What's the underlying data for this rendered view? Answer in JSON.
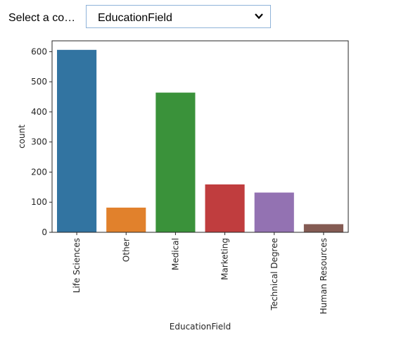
{
  "control": {
    "label": "Select a co…",
    "selected": "EducationField",
    "chevron_icon": "chevron-down-icon"
  },
  "chart_data": {
    "type": "bar",
    "categories": [
      "Life Sciences",
      "Other",
      "Medical",
      "Marketing",
      "Technical Degree",
      "Human Resources"
    ],
    "values": [
      606,
      82,
      464,
      159,
      132,
      27
    ],
    "colors": [
      "#3274a1",
      "#e1812c",
      "#3a923a",
      "#c03d3e",
      "#9372b2",
      "#845b53"
    ],
    "xlabel": "EducationField",
    "ylabel": "count",
    "yticks": [
      0,
      100,
      200,
      300,
      400,
      500,
      600
    ],
    "ylim": [
      0,
      636
    ],
    "grid": false,
    "legend": "none"
  }
}
